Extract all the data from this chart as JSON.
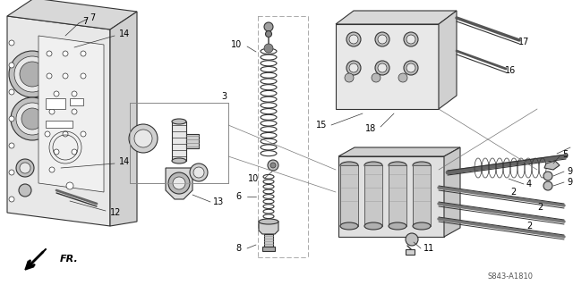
{
  "bg_color": "#ffffff",
  "fig_width": 6.4,
  "fig_height": 3.19,
  "dpi": 100,
  "diagram_code": "S843-A1810",
  "fr_label": "FR.",
  "line_color": "#333333",
  "text_color": "#000000",
  "gray_fill": "#c8c8c8",
  "light_fill": "#e8e8e8",
  "mid_fill": "#b0b0b0",
  "dark_fill": "#888888"
}
